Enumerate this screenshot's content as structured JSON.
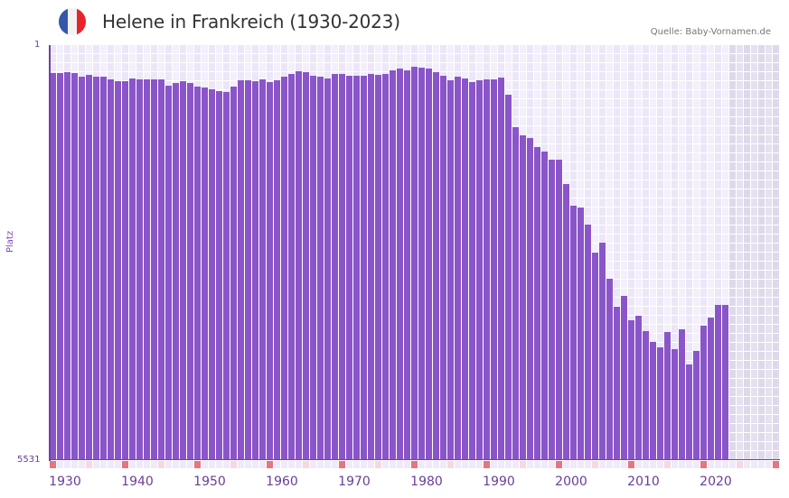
{
  "header": {
    "title": "Helene in Frankreich (1930-2023)",
    "source": "Quelle: Baby-Vornamen.de",
    "flag": {
      "icon": "france-flag-icon",
      "colors": [
        "#3457a7",
        "#f2f2f2",
        "#e8232b"
      ]
    }
  },
  "axes": {
    "y_top_label": "1",
    "y_bottom_label": "5531",
    "y_title": "Platz",
    "x_labels": [
      "1930",
      "1940",
      "1950",
      "1960",
      "1970",
      "1980",
      "1990",
      "2000",
      "2010",
      "2020"
    ]
  },
  "colors": {
    "bar": "#8a55c8",
    "axis": "#7040a8",
    "grid_a": "#f3effb",
    "grid_b": "#ece6f7",
    "future_a": "#e6e1ef",
    "future_b": "#dfd8ea",
    "marker_decade": "#e57580",
    "marker_mid": "#f6d8e0",
    "marker_plain": "#efeaf8"
  },
  "chart_data": {
    "type": "bar",
    "title": "Helene in Frankreich (1930-2023)",
    "subtitle": "Quelle: Baby-Vornamen.de",
    "xlabel": "",
    "ylabel": "Platz",
    "y_inverted": true,
    "ylim": [
      1,
      5531
    ],
    "xlim": [
      1930,
      2030
    ],
    "grid": true,
    "legend": "none",
    "x": [
      1930,
      1931,
      1932,
      1933,
      1934,
      1935,
      1936,
      1937,
      1938,
      1939,
      1940,
      1941,
      1942,
      1943,
      1944,
      1945,
      1946,
      1947,
      1948,
      1949,
      1950,
      1951,
      1952,
      1953,
      1954,
      1955,
      1956,
      1957,
      1958,
      1959,
      1960,
      1961,
      1962,
      1963,
      1964,
      1965,
      1966,
      1967,
      1968,
      1969,
      1970,
      1971,
      1972,
      1973,
      1974,
      1975,
      1976,
      1977,
      1978,
      1979,
      1980,
      1981,
      1982,
      1983,
      1984,
      1985,
      1986,
      1987,
      1988,
      1989,
      1990,
      1991,
      1992,
      1993,
      1994,
      1995,
      1996,
      1997,
      1998,
      1999,
      2000,
      2001,
      2002,
      2003,
      2004,
      2005,
      2006,
      2007,
      2008,
      2009,
      2010,
      2011,
      2012,
      2013,
      2014,
      2015,
      2016,
      2017,
      2018,
      2019,
      2020,
      2021,
      2022,
      2023
    ],
    "values": [
      374,
      374,
      362,
      374,
      422,
      398,
      422,
      422,
      458,
      482,
      482,
      446,
      458,
      458,
      458,
      458,
      542,
      506,
      482,
      506,
      554,
      566,
      590,
      614,
      626,
      554,
      470,
      470,
      482,
      458,
      494,
      470,
      422,
      386,
      350,
      362,
      410,
      422,
      446,
      386,
      386,
      410,
      410,
      410,
      386,
      398,
      386,
      338,
      314,
      338,
      290,
      302,
      314,
      362,
      410,
      470,
      422,
      446,
      494,
      470,
      458,
      458,
      434,
      662,
      1095,
      1203,
      1239,
      1359,
      1419,
      1528,
      1528,
      1852,
      2141,
      2165,
      2393,
      2766,
      2634,
      3115,
      3488,
      3344,
      3669,
      3608,
      3813,
      3957,
      4029,
      3825,
      4053,
      3789,
      4258,
      4077,
      3741,
      3633,
      3464,
      3464
    ],
    "shaded_future_from": 2024
  }
}
